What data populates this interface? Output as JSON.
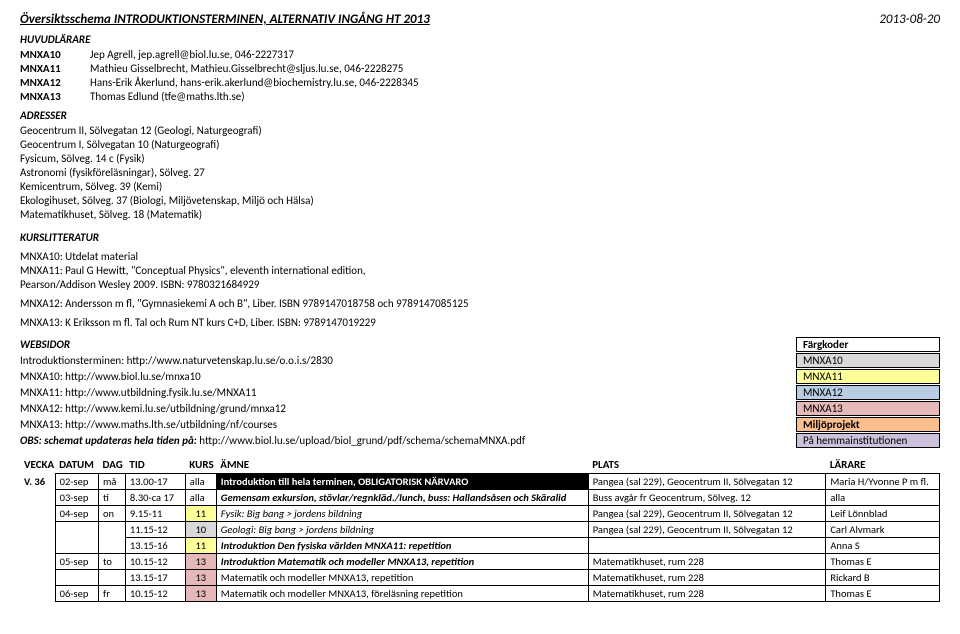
{
  "header": {
    "title": "Översiktsschema INTRODUKTIONSTERMINEN, ALTERNATIV INGÅNG HT 2013",
    "date": "2013-08-20"
  },
  "huvudlarare": {
    "label": "HUVUDLÄRARE",
    "rows": [
      {
        "code": "MNXA10",
        "text": "Jep Agrell, jep.agrell@biol.lu.se, 046-2227317"
      },
      {
        "code": "MNXA11",
        "text": "Mathieu Gisselbrecht, Mathieu.Gisselbrecht@sljus.lu.se, 046-2228275"
      },
      {
        "code": "MNXA12",
        "text": "Hans-Erik Åkerlund, hans-erik.akerlund@biochemistry.lu.se, 046-2228345"
      },
      {
        "code": "MNXA13",
        "text": "Thomas Edlund (tfe@maths.lth.se)"
      }
    ]
  },
  "adresser": {
    "label": "ADRESSER",
    "lines": [
      "Geocentrum II, Sölvegatan 12 (Geologi, Naturgeografi)",
      "Geocentrum I, Sölvegatan 10 (Naturgeografi)",
      "Fysicum, Sölveg. 14 c (Fysik)",
      "Astronomi (fysikföreläsningar), Sölveg. 27",
      "Kemicentrum, Sölveg. 39 (Kemi)",
      "Ekologihuset, Sölveg. 37 (Biologi, Miljövetenskap, Miljö och Hälsa)",
      "Matematikhuset, Sölveg. 18 (Matematik)"
    ]
  },
  "kurslitt": {
    "label": "KURSLITTERATUR",
    "lines": [
      "MNXA10: Utdelat material",
      "MNXA11: Paul G Hewitt, \"Conceptual Physics\", eleventh international edition,",
      "Pearson/Addison Wesley 2009. ISBN: 9780321684929",
      "MNXA12: Andersson m fl, \"Gymnasiekemi A och B\", Liber. ISBN 9789147018758 och 9789147085125",
      "MNXA13: K Eriksson m fl. Tal och Rum NT kurs C+D, Liber. ISBN: 9789147019229"
    ]
  },
  "websidor": {
    "label": "WEBSIDOR",
    "fargkoder": "Färgkoder",
    "rows": [
      {
        "text": "Introduktionsterminen: http://www.naturvetenskap.lu.se/o.o.i.s/2830",
        "tag": "MNXA10",
        "tagClass": "c-mnxa10"
      },
      {
        "text": "MNXA10: http://www.biol.lu.se/mnxa10",
        "tag": "MNXA11",
        "tagClass": "c-mnxa11"
      },
      {
        "text": "MNXA11: http://www.utbildning.fysik.lu.se/MNXA11",
        "tag": "MNXA12",
        "tagClass": "c-mnxa12"
      },
      {
        "text": "MNXA12: http://www.kemi.lu.se/utbildning/grund/mnxa12",
        "tag": "MNXA13",
        "tagClass": "c-mnxa13"
      },
      {
        "text": "MNXA13: http://www.maths.lth.se/utbildning/nf/courses",
        "tag": "Miljöprojekt",
        "tagClass": "c-miljo"
      }
    ],
    "obs": {
      "label": "OBS: schemat updateras hela tiden på:",
      "url": "http://www.biol.lu.se/upload/biol_grund/pdf/schema/schemaMNXA.pdf",
      "tag": "På hemmainstitutionen",
      "tagClass": "c-hemma"
    }
  },
  "sched": {
    "headers": {
      "vecka": "VECKA",
      "datum": "DATUM",
      "dag": "DAG",
      "tid": "TID",
      "kurs": "KURS",
      "amne": "ÄMNE",
      "plats": "PLATS",
      "larare": "LÄRARE"
    },
    "vecka": "V. 36",
    "rows": [
      {
        "datum": "02-sep",
        "dag": "må",
        "tid": "13.00-17",
        "kurs": "alla",
        "kursClass": "",
        "amne": "Introduktion till hela terminen, OBLIGATORISK NÄRVARO",
        "amneClass": "black-bg",
        "plats": "Pangea (sal 229), Geocentrum II, Sölvegatan 12",
        "larare": "Maria H/Yvonne P m fl."
      },
      {
        "datum": "03-sep",
        "dag": "ti",
        "tid": "8.30-ca 17",
        "kurs": "alla",
        "kursClass": "",
        "amne": "Gemensam exkursion, stövlar/regnkläd./lunch, buss: Hallandsåsen och Skäralid",
        "amneClass": "amne-bold",
        "plats": "Buss avgår fr Geocentrum, Sölveg. 12",
        "larare": "alla"
      },
      {
        "datum": "04-sep",
        "dag": "on",
        "tid": "9.15-11",
        "kurs": "11",
        "kursClass": "kurs-11",
        "amne": "Fysik: Big bang > jordens bildning",
        "amneClass": "amne-ital",
        "plats": "Pangea (sal 229), Geocentrum II, Sölvegatan 12",
        "larare": "Leif Lönnblad"
      },
      {
        "datum": "",
        "dag": "",
        "tid": "11.15-12",
        "kurs": "10",
        "kursClass": "kurs-10",
        "amne": "Geologi: Big bang > jordens bildning",
        "amneClass": "amne-ital",
        "plats": "Pangea (sal 229), Geocentrum II, Sölvegatan 12",
        "larare": "Carl Alvmark"
      },
      {
        "datum": "",
        "dag": "",
        "tid": "13.15-16",
        "kurs": "11",
        "kursClass": "kurs-11",
        "amne": "Introduktion Den fysiska världen MNXA11: repetition",
        "amneClass": "amne-bold",
        "plats": "",
        "larare": "Anna S"
      },
      {
        "datum": "05-sep",
        "dag": "to",
        "tid": "10.15-12",
        "kurs": "13",
        "kursClass": "kurs-13",
        "amne": "Introduktion Matematik och modeller MNXA13, repetition",
        "amneClass": "amne-bold",
        "plats": "Matematikhuset, rum 228",
        "larare": "Thomas E"
      },
      {
        "datum": "",
        "dag": "",
        "tid": "13.15-17",
        "kurs": "13",
        "kursClass": "kurs-13",
        "amne": "Matematik och modeller MNXA13, repetition",
        "amneClass": "",
        "plats": "Matematikhuset, rum 228",
        "larare": "Rickard B"
      },
      {
        "datum": "06-sep",
        "dag": "fr",
        "tid": "10.15-12",
        "kurs": "13",
        "kursClass": "kurs-13",
        "amne": "Matematik och modeller MNXA13, föreläsning repetition",
        "amneClass": "",
        "plats": "Matematikhuset, rum 228",
        "larare": "Thomas E"
      }
    ]
  }
}
